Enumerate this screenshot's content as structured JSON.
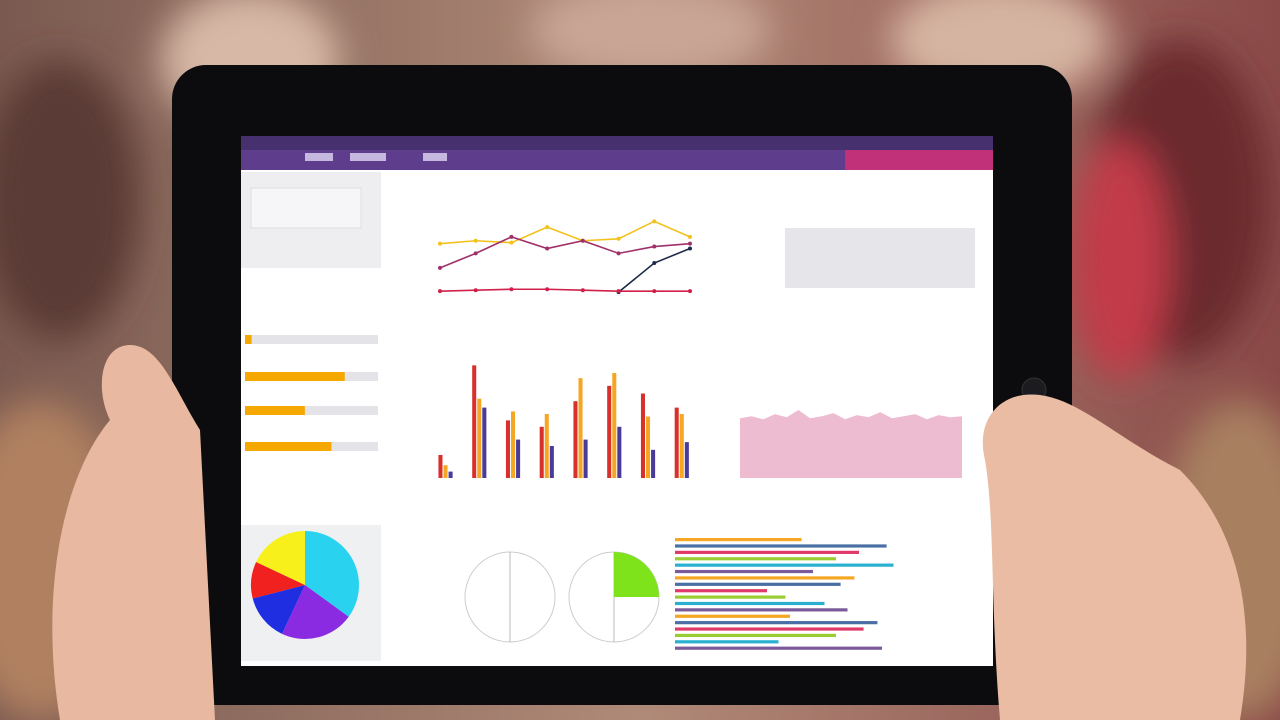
{
  "chart_data": [
    {
      "type": "line",
      "ylim": [
        0,
        100
      ],
      "series": [
        {
          "color": "#f2c21b",
          "values": [
            55,
            58,
            56,
            72,
            58,
            60,
            78,
            62
          ]
        },
        {
          "color": "#a0306a",
          "values": [
            30,
            45,
            62,
            50,
            58,
            45,
            52,
            55
          ]
        },
        {
          "color": "#1e2a4a",
          "values": [
            null,
            null,
            null,
            null,
            null,
            5,
            35,
            50
          ]
        },
        {
          "color": "#d0204a",
          "values": [
            6,
            7,
            8,
            8,
            7,
            6,
            6,
            6
          ]
        }
      ]
    },
    {
      "type": "bar",
      "ylim": [
        0,
        100
      ],
      "series": [
        {
          "color": "#d8302a",
          "values": [
            18,
            88,
            45,
            40,
            60,
            72,
            66,
            55
          ]
        },
        {
          "color": "#f5a623",
          "values": [
            10,
            62,
            52,
            50,
            78,
            82,
            48,
            50
          ]
        },
        {
          "color": "#4a3a9a",
          "values": [
            5,
            55,
            30,
            25,
            30,
            40,
            22,
            28
          ]
        }
      ]
    },
    {
      "type": "area",
      "ylim": [
        0,
        100
      ],
      "color": "#e8a6c0",
      "values": [
        58,
        60,
        57,
        62,
        59,
        66,
        58,
        60,
        63,
        57,
        61,
        59,
        64,
        58,
        60,
        62,
        57,
        61,
        59,
        60
      ]
    },
    {
      "type": "pie",
      "colors": [
        "#29d3f0",
        "#8a2be2",
        "#1f2ee0",
        "#f0211f",
        "#f7f01a"
      ],
      "values": [
        35,
        22,
        14,
        11,
        18
      ]
    },
    {
      "type": "progress",
      "ylim": [
        0,
        100
      ],
      "color": "#f5a800",
      "values": [
        5,
        75,
        45,
        65
      ]
    },
    {
      "type": "hbar",
      "ylim": [
        0,
        100
      ],
      "colors": [
        "#f5a623",
        "#4a6fa5",
        "#e03a6a",
        "#9acd32",
        "#29b0d0",
        "#7a5a9a"
      ],
      "values": [
        55,
        92,
        80,
        70,
        95,
        60,
        78,
        72,
        40,
        48,
        65,
        75,
        50,
        88,
        82,
        70,
        45,
        90
      ]
    },
    {
      "type": "gauge",
      "ylim": [
        0,
        100
      ],
      "color": "#7ee31a",
      "values": [
        0,
        25
      ]
    }
  ]
}
